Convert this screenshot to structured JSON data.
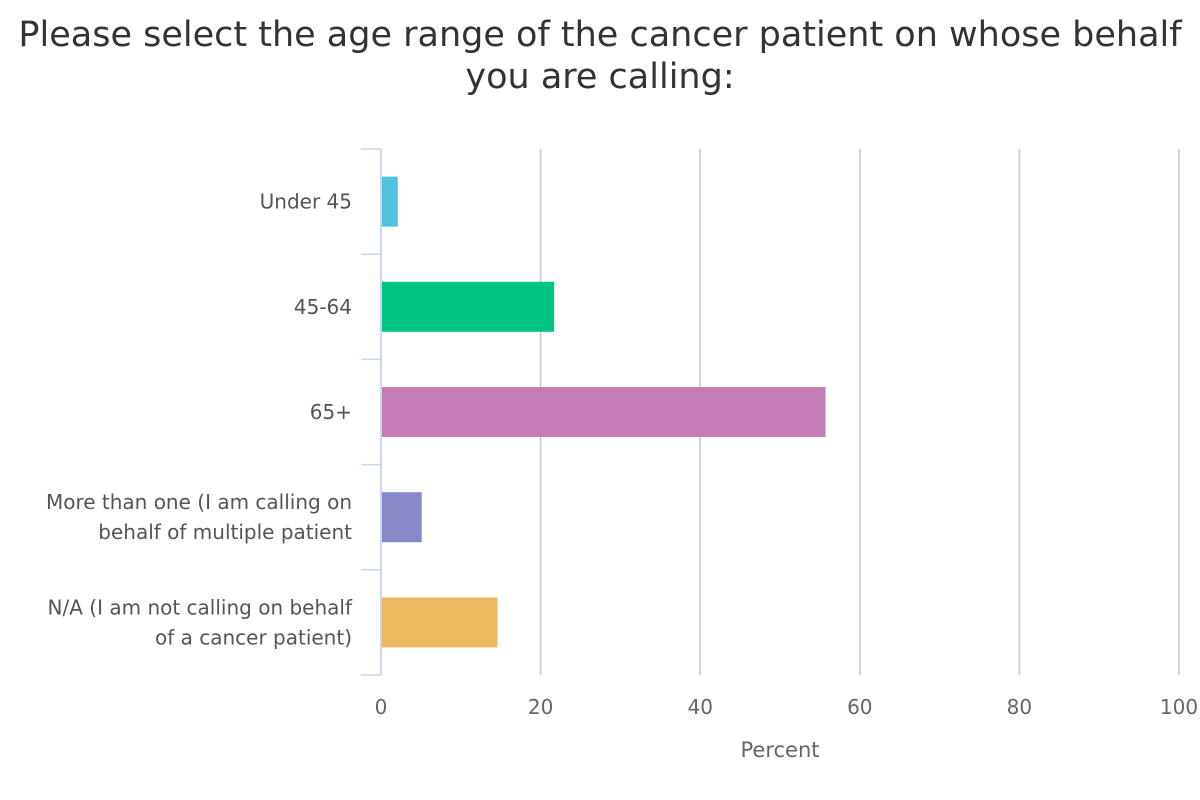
{
  "chart_data": {
    "type": "bar",
    "orientation": "horizontal",
    "title": "Please select the age range of the cancer patient on whose behalf you are calling:",
    "categories": [
      "Under 45",
      "45-64",
      "65+",
      "More than one (I am calling on behalf of multiple patient",
      "N/A (I am not calling on behalf of a cancer patient)"
    ],
    "category_lines": [
      [
        "Under 45"
      ],
      [
        "45-64"
      ],
      [
        "65+"
      ],
      [
        "More than one (I am calling on",
        "behalf of multiple patient"
      ],
      [
        "N/A (I am not calling on behalf",
        "of a cancer patient)"
      ]
    ],
    "values": [
      2.1,
      21.7,
      55.7,
      5.1,
      14.6
    ],
    "colors": [
      "#4fc3de",
      "#00c484",
      "#c47cb4",
      "#8888c8",
      "#eaba5e"
    ],
    "xlabel": "Percent",
    "ylabel": "",
    "xlim": [
      0,
      100
    ],
    "xticks": [
      0,
      20,
      40,
      60,
      80,
      100
    ],
    "grid": true,
    "legend": "none"
  }
}
